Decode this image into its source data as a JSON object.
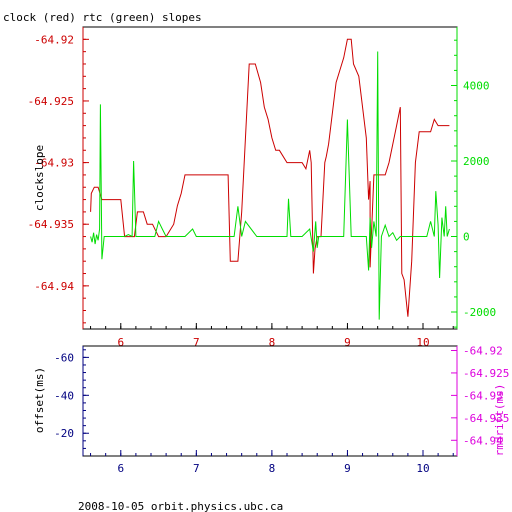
{
  "title": "clock (red) rtc (green) slopes",
  "footer": "2008-10-05  orbit.physics.ubc.ca",
  "colors": {
    "red": "#cc0000",
    "green": "#00dd00",
    "navy": "#000080",
    "magenta": "#dd00dd",
    "black": "#000000"
  },
  "chart_data": [
    {
      "type": "line",
      "title": "clock (red) rtc (green) slopes",
      "ylabel": "clockslope",
      "xlim": [
        5.5,
        10.45
      ],
      "ylim": [
        -64.9435,
        -64.919
      ],
      "y2lim": [
        -2450,
        5550
      ],
      "grid": false,
      "legend": "none",
      "x_ticks": [
        6,
        7,
        8,
        9,
        10
      ],
      "x_tick_labels": [
        "6",
        "7",
        "8",
        "9",
        "10"
      ],
      "y_ticks": [
        -64.92,
        -64.925,
        -64.93,
        -64.935,
        -64.94
      ],
      "y_tick_labels": [
        "-64.92",
        "-64.925",
        "-64.93",
        "-64.935",
        "-64.94"
      ],
      "y2_ticks": [
        4000,
        2000,
        0,
        -2000
      ],
      "y2_tick_labels": [
        "4000",
        "2000",
        "0",
        "-2000"
      ],
      "series": [
        {
          "color": "#cc0000",
          "axis": "left",
          "x": [
            5.6,
            5.61,
            5.65,
            5.7,
            5.75,
            5.8,
            6.0,
            6.05,
            6.1,
            6.18,
            6.22,
            6.3,
            6.35,
            6.42,
            6.5,
            6.55,
            6.6,
            6.7,
            6.75,
            6.8,
            6.85,
            7.0,
            7.2,
            7.35,
            7.42,
            7.45,
            7.5,
            7.55,
            7.6,
            7.7,
            7.72,
            7.78,
            7.85,
            7.9,
            7.95,
            8.0,
            8.05,
            8.1,
            8.2,
            8.3,
            8.4,
            8.45,
            8.5,
            8.52,
            8.55,
            8.57,
            8.6,
            8.65,
            8.7,
            8.72,
            8.75,
            8.85,
            8.9,
            8.95,
            9.0,
            9.05,
            9.08,
            9.15,
            9.25,
            9.28,
            9.3,
            9.3,
            9.35,
            9.4,
            9.45,
            9.5,
            9.55,
            9.6,
            9.65,
            9.7,
            9.72,
            9.75,
            9.8,
            9.85,
            9.9,
            9.95,
            10.0,
            10.05,
            10.1,
            10.15,
            10.2,
            10.28,
            10.35
          ],
          "values": [
            -64.934,
            -64.9325,
            -64.932,
            -64.932,
            -64.933,
            -64.933,
            -64.933,
            -64.936,
            -64.936,
            -64.936,
            -64.934,
            -64.934,
            -64.935,
            -64.935,
            -64.936,
            -64.936,
            -64.936,
            -64.935,
            -64.9335,
            -64.9325,
            -64.931,
            -64.931,
            -64.931,
            -64.931,
            -64.931,
            -64.938,
            -64.938,
            -64.938,
            -64.934,
            -64.922,
            -64.922,
            -64.922,
            -64.9235,
            -64.9255,
            -64.9265,
            -64.928,
            -64.929,
            -64.929,
            -64.93,
            -64.93,
            -64.93,
            -64.9305,
            -64.929,
            -64.93,
            -64.939,
            -64.937,
            -64.936,
            -64.936,
            -64.93,
            -64.9295,
            -64.9285,
            -64.9235,
            -64.9225,
            -64.9215,
            -64.92,
            -64.92,
            -64.922,
            -64.923,
            -64.928,
            -64.933,
            -64.9315,
            -64.9385,
            -64.931,
            -64.931,
            -64.931,
            -64.931,
            -64.93,
            -64.9285,
            -64.927,
            -64.9255,
            -64.939,
            -64.9395,
            -64.9425,
            -64.938,
            -64.93,
            -64.9275,
            -64.9275,
            -64.9275,
            -64.9275,
            -64.9265,
            -64.927,
            -64.927,
            -64.927
          ]
        },
        {
          "color": "#00dd00",
          "axis": "right",
          "x": [
            5.6,
            5.62,
            5.64,
            5.66,
            5.68,
            5.7,
            5.72,
            5.73,
            5.75,
            5.78,
            5.85,
            6.05,
            6.1,
            6.15,
            6.17,
            6.2,
            6.3,
            6.45,
            6.5,
            6.55,
            6.6,
            6.68,
            6.85,
            6.95,
            7.0,
            7.05,
            7.3,
            7.45,
            7.5,
            7.55,
            7.6,
            7.65,
            7.8,
            8.1,
            8.2,
            8.22,
            8.25,
            8.4,
            8.5,
            8.55,
            8.58,
            8.6,
            8.62,
            8.7,
            8.8,
            8.95,
            9.0,
            9.05,
            9.1,
            9.2,
            9.25,
            9.28,
            9.3,
            9.32,
            9.35,
            9.38,
            9.4,
            9.42,
            9.45,
            9.5,
            9.55,
            9.6,
            9.65,
            9.7,
            9.8,
            9.9,
            10.0,
            10.05,
            10.1,
            10.15,
            10.17,
            10.2,
            10.22,
            10.25,
            10.28,
            10.3,
            10.32,
            10.35
          ],
          "values": [
            0,
            -150,
            100,
            -200,
            50,
            -100,
            200,
            3500,
            -600,
            0,
            0,
            0,
            50,
            0,
            2000,
            0,
            0,
            0,
            400,
            200,
            0,
            0,
            0,
            200,
            0,
            0,
            0,
            0,
            0,
            800,
            0,
            400,
            0,
            0,
            0,
            1000,
            0,
            0,
            200,
            -400,
            400,
            -300,
            0,
            0,
            0,
            0,
            3100,
            0,
            0,
            0,
            0,
            -900,
            500,
            -300,
            400,
            0,
            4900,
            -2200,
            0,
            300,
            0,
            100,
            -100,
            0,
            0,
            0,
            0,
            0,
            400,
            0,
            1200,
            300,
            -1100,
            500,
            0,
            800,
            0,
            200
          ]
        }
      ]
    },
    {
      "type": "line",
      "ylabel": "offset(ms)",
      "y2label": "rmdrift(ms)",
      "xlim": [
        5.5,
        10.45
      ],
      "ylim": [
        -8,
        -66
      ],
      "y2lim": [
        -64.9435,
        -64.919
      ],
      "grid": false,
      "legend": "none",
      "x_ticks": [
        6,
        7,
        8,
        9,
        10
      ],
      "x_tick_labels": [
        "6",
        "7",
        "8",
        "9",
        "10"
      ],
      "y_ticks": [
        -60,
        -40,
        -20
      ],
      "y_tick_labels": [
        "-60",
        "-40",
        "-20"
      ],
      "y2_ticks": [
        -64.92,
        -64.925,
        -64.93,
        -64.935,
        -64.94
      ],
      "y2_tick_labels": [
        "-64.92",
        "-64.925",
        "-64.93",
        "-64.935",
        "-64.94"
      ],
      "series": []
    }
  ]
}
